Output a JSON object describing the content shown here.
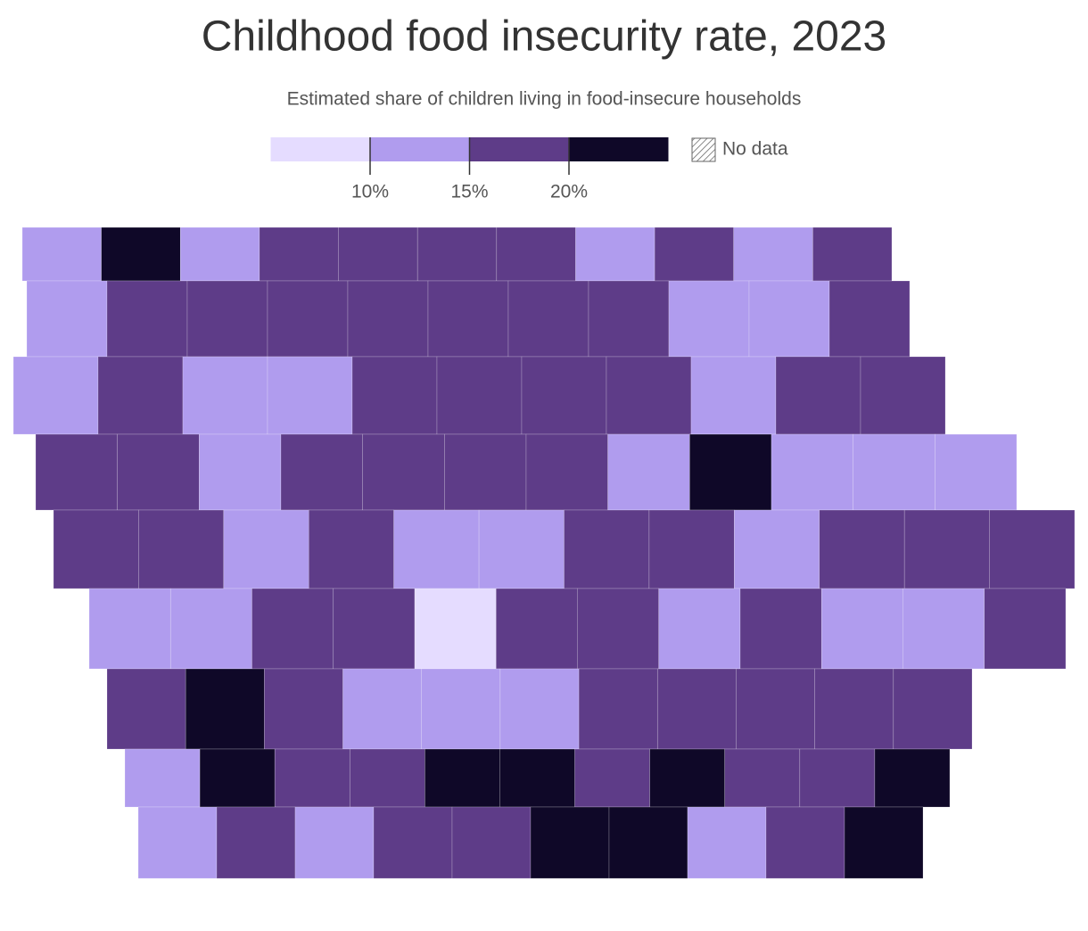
{
  "header": {
    "title": "Childhood food insecurity rate, 2023",
    "subtitle": "Estimated share of children living in food-insecure households"
  },
  "legend": {
    "colors": [
      "#e5dcff",
      "#b09cee",
      "#5e3c88",
      "#0f0828"
    ],
    "ticks": [
      {
        "value": 10,
        "label": "10%"
      },
      {
        "value": 15,
        "label": "15%"
      },
      {
        "value": 20,
        "label": "20%"
      }
    ],
    "no_data": "No data"
  },
  "counties": [
    [
      1,
      3,
      1,
      2,
      2,
      2,
      2,
      1,
      2,
      1,
      2
    ],
    [
      1,
      2,
      2,
      2,
      2,
      2,
      2,
      2,
      1,
      1,
      2
    ],
    [
      1,
      2,
      1,
      1,
      2,
      2,
      2,
      2,
      1,
      2,
      2
    ],
    [
      2,
      2,
      1,
      2,
      2,
      2,
      2,
      1,
      3,
      1,
      1,
      1
    ],
    [
      2,
      2,
      1,
      2,
      1,
      1,
      2,
      2,
      1,
      2,
      2,
      2
    ],
    [
      1,
      1,
      2,
      2,
      0,
      2,
      2,
      1,
      2,
      1,
      1,
      2
    ],
    [
      2,
      3,
      2,
      1,
      1,
      1,
      2,
      2,
      2,
      2,
      2
    ],
    [
      1,
      3,
      2,
      2,
      3,
      3,
      2,
      3,
      2,
      2,
      3
    ],
    [
      1,
      2,
      1,
      2,
      2,
      3,
      3,
      1,
      2,
      3
    ]
  ]
}
